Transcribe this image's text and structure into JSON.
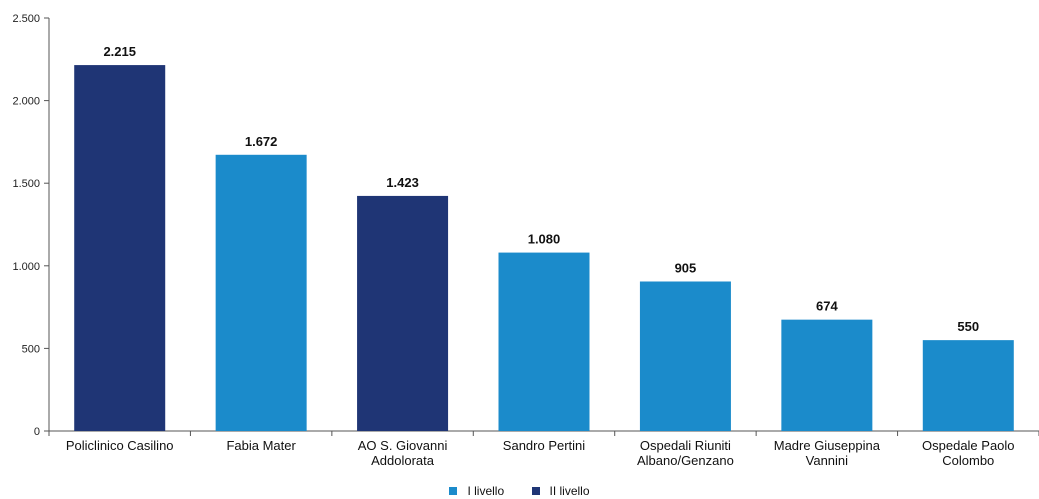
{
  "chart_data": {
    "type": "bar",
    "categories": [
      [
        "Policlinico Casilino"
      ],
      [
        "Fabia Mater"
      ],
      [
        "AO S. Giovanni",
        "Addolorata"
      ],
      [
        "Sandro Pertini"
      ],
      [
        "Ospedali Riuniti",
        "Albano/Genzano"
      ],
      [
        "Madre Giuseppina",
        "Vannini"
      ],
      [
        "Ospedale Paolo",
        "Colombo"
      ]
    ],
    "values": [
      2215,
      1672,
      1423,
      1080,
      905,
      674,
      550
    ],
    "value_labels": [
      "2.215",
      "1.672",
      "1.423",
      "1.080",
      "905",
      "674",
      "550"
    ],
    "bar_series": [
      "II livello",
      "I livello",
      "II livello",
      "I livello",
      "I livello",
      "I livello",
      "I livello"
    ],
    "series": [
      {
        "name": "I livello",
        "color": "#1b8bcb"
      },
      {
        "name": "II livello",
        "color": "#1f3575"
      }
    ],
    "ylim": [
      0,
      2500
    ],
    "yticks": [
      0,
      500,
      1000,
      1500,
      2000,
      2500
    ],
    "ytick_labels": [
      "0",
      "500",
      "1.000",
      "1.500",
      "2.000",
      "2.500"
    ],
    "legend_position": "bottom",
    "grid": false
  }
}
